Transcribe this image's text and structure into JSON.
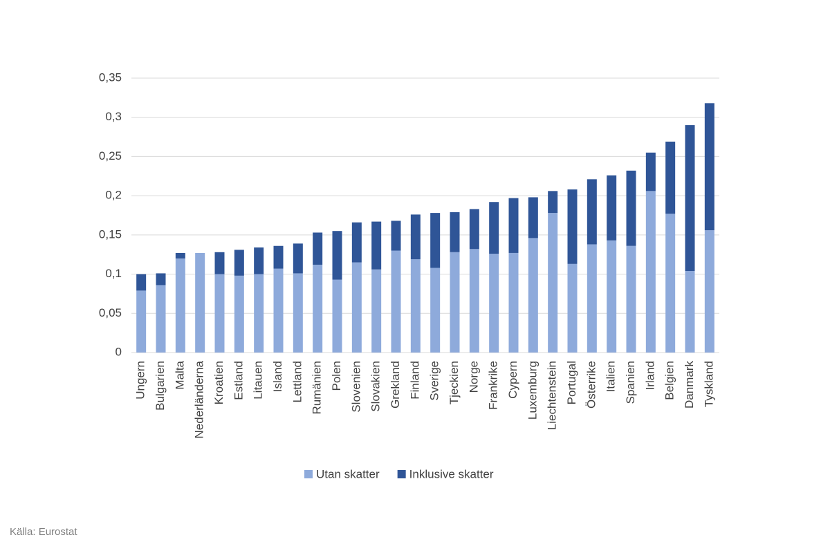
{
  "chart_data": {
    "type": "stacked_bar",
    "categories": [
      "Ungern",
      "Bulgarien",
      "Malta",
      "Nederländerna",
      "Kroatien",
      "Estland",
      "Litauen",
      "Island",
      "Lettland",
      "Rumänien",
      "Polen",
      "Slovenien",
      "Slovakien",
      "Grekland",
      "Finland",
      "Sverige",
      "Tjeckien",
      "Norge",
      "Frankrike",
      "Cypern",
      "Luxemburg",
      "Liechtenstein",
      "Portugal",
      "Österrike",
      "Italien",
      "Spanien",
      "Irland",
      "Belgien",
      "Danmark",
      "Tyskland"
    ],
    "series": [
      {
        "name": "Utan skatter",
        "color": "#8eaadb",
        "values": [
          0.079,
          0.086,
          0.12,
          0.127,
          0.1,
          0.098,
          0.1,
          0.107,
          0.101,
          0.112,
          0.093,
          0.115,
          0.106,
          0.13,
          0.119,
          0.108,
          0.128,
          0.132,
          0.126,
          0.127,
          0.146,
          0.178,
          0.113,
          0.138,
          0.143,
          0.136,
          0.206,
          0.177,
          0.104,
          0.156
        ]
      },
      {
        "name": "Inklusive skatter",
        "color": "#2f5597",
        "values": [
          0.021,
          0.015,
          0.007,
          0,
          0.028,
          0.033,
          0.034,
          0.029,
          0.038,
          0.041,
          0.062,
          0.051,
          0.061,
          0.038,
          0.057,
          0.07,
          0.051,
          0.051,
          0.066,
          0.07,
          0.052,
          0.028,
          0.095,
          0.083,
          0.083,
          0.096,
          0.049,
          0.092,
          0.186,
          0.162
        ]
      }
    ],
    "ylim": [
      0,
      0.35
    ],
    "yticks": [
      0,
      {
        "value": 0.05,
        "label": "0,05"
      },
      {
        "value": 0.1,
        "label": "0,1"
      },
      {
        "value": 0.15,
        "label": "0,15"
      },
      {
        "value": 0.2,
        "label": "0,2"
      },
      {
        "value": 0.25,
        "label": "0,25"
      },
      {
        "value": 0.3,
        "label": "0,3"
      },
      {
        "value": 0.35,
        "label": "0,35"
      }
    ],
    "grid": true,
    "legend": "bottom",
    "source": "Källa: Eurostat"
  }
}
